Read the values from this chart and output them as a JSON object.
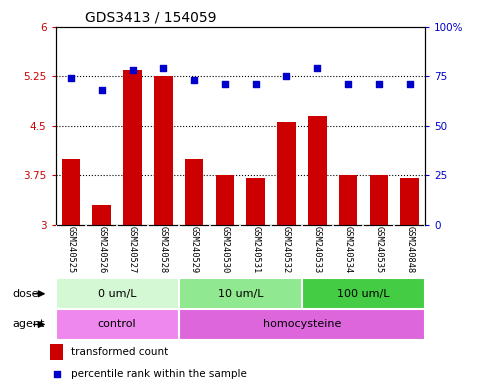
{
  "title": "GDS3413 / 154059",
  "samples": [
    "GSM240525",
    "GSM240526",
    "GSM240527",
    "GSM240528",
    "GSM240529",
    "GSM240530",
    "GSM240531",
    "GSM240532",
    "GSM240533",
    "GSM240534",
    "GSM240535",
    "GSM240848"
  ],
  "bar_values": [
    4.0,
    3.3,
    5.35,
    5.25,
    4.0,
    3.75,
    3.7,
    4.55,
    4.65,
    3.75,
    3.75,
    3.7
  ],
  "dot_values": [
    74,
    68,
    78,
    79,
    73,
    71,
    71,
    75,
    79,
    71,
    71,
    71
  ],
  "bar_color": "#cc0000",
  "dot_color": "#0000cc",
  "ylim_left": [
    3,
    6
  ],
  "ylim_right": [
    0,
    100
  ],
  "yticks_left": [
    3,
    3.75,
    4.5,
    5.25,
    6
  ],
  "yticks_right": [
    0,
    25,
    50,
    75,
    100
  ],
  "ytick_labels_left": [
    "3",
    "3.75",
    "4.5",
    "5.25",
    "6"
  ],
  "ytick_labels_right": [
    "0",
    "25",
    "50",
    "75",
    "100%"
  ],
  "hlines": [
    3.75,
    4.5,
    5.25
  ],
  "dose_groups": [
    {
      "label": "0 um/L",
      "start": 0,
      "end": 4,
      "color": "#d4f7d4"
    },
    {
      "label": "10 um/L",
      "start": 4,
      "end": 8,
      "color": "#90e890"
    },
    {
      "label": "100 um/L",
      "start": 8,
      "end": 12,
      "color": "#44cc44"
    }
  ],
  "agent_groups": [
    {
      "label": "control",
      "start": 0,
      "end": 4,
      "color": "#ee88ee"
    },
    {
      "label": "homocysteine",
      "start": 4,
      "end": 12,
      "color": "#dd66dd"
    }
  ],
  "dose_label": "dose",
  "agent_label": "agent",
  "legend_bar_label": "transformed count",
  "legend_dot_label": "percentile rank within the sample",
  "sample_bg_color": "#d8d8d8",
  "plot_bg": "#ffffff",
  "title_fontsize": 10,
  "tick_fontsize": 7.5,
  "label_fontsize": 8
}
